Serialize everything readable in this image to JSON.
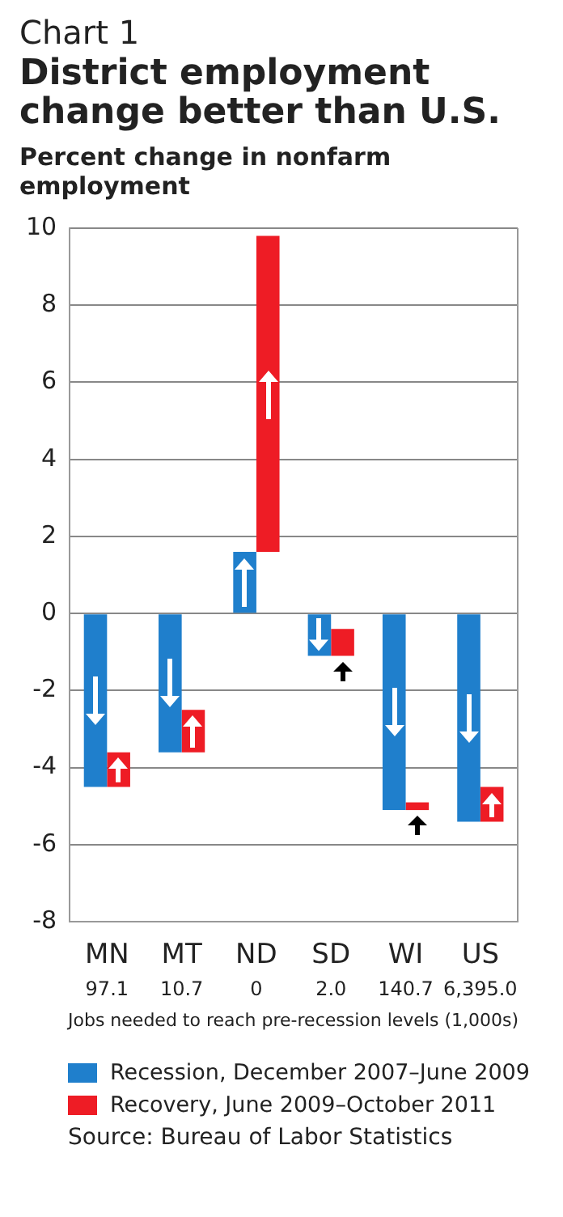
{
  "chart_data": {
    "type": "bar",
    "title": "District employment change better than U.S.",
    "ylabel": "Percent change in nonfarm employment",
    "categories": [
      "MN",
      "MT",
      "ND",
      "SD",
      "WI",
      "US"
    ],
    "series": [
      {
        "name": "Recession, December 2007–June 2009",
        "color": "#1f7fcc",
        "values": [
          -4.5,
          -3.6,
          1.6,
          -1.1,
          -5.1,
          -5.4
        ]
      },
      {
        "name": "Recovery, June 2009–October 2011",
        "color": "#ee1c25",
        "base": [
          -4.5,
          -3.6,
          1.6,
          -1.1,
          -5.1,
          -5.4
        ],
        "values": [
          0.9,
          1.1,
          8.2,
          0.7,
          0.2,
          0.9
        ]
      }
    ],
    "ylim": [
      -8,
      10
    ],
    "yticks": [
      -8,
      -6,
      -4,
      -2,
      0,
      2,
      4,
      6,
      8,
      10
    ],
    "grid": "y",
    "legend": "bottom",
    "annotations": [
      "Chart 1",
      "97.1",
      "10.7",
      "0",
      "2.0",
      "140.7",
      "6,395.0",
      "Jobs needed to reach pre-recession levels  (1,000s)",
      "Source: Bureau of Labor Statistics"
    ]
  }
}
